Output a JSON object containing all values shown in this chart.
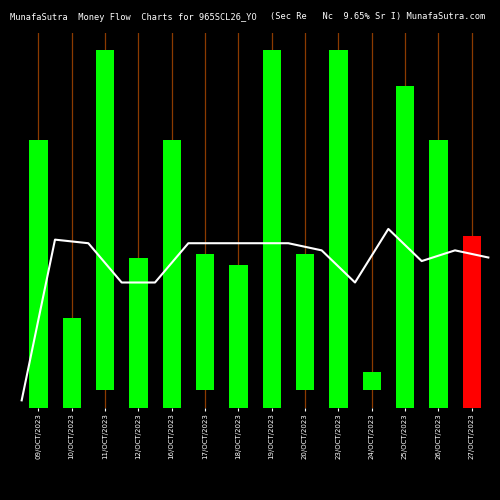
{
  "title_left": "MunafaSutra  Money Flow  Charts for 965SCL26_YO",
  "title_right": "(Sec Re   Nc  9.65% Sr I) MunafaSutra.com",
  "background_color": "#000000",
  "bar_colors": [
    "#00ff00",
    "#00ff00",
    "#00ff00",
    "#00ff00",
    "#00ff00",
    "#00ff00",
    "#00ff00",
    "#00ff00",
    "#00ff00",
    "#00ff00",
    "#00ff00",
    "#00ff00",
    "#00ff00",
    "#ff0000"
  ],
  "bar_tops": [
    0.75,
    0.25,
    1.0,
    0.42,
    0.75,
    0.43,
    0.4,
    1.0,
    0.43,
    1.0,
    0.1,
    0.9,
    0.75,
    0.48
  ],
  "bar_bottoms": [
    0.0,
    0.0,
    0.05,
    0.0,
    0.0,
    0.05,
    0.0,
    0.0,
    0.05,
    0.0,
    0.05,
    0.0,
    0.0,
    0.0
  ],
  "line_y": [
    0.02,
    0.47,
    0.46,
    0.35,
    0.35,
    0.46,
    0.46,
    0.46,
    0.46,
    0.44,
    0.35,
    0.5,
    0.41,
    0.44,
    0.42
  ],
  "spine_color": "#8B3A00",
  "labels": [
    "09/OCT/2023",
    "10/OCT/2023",
    "11/OCT/2023",
    "12/OCT/2023",
    "16/OCT/2023",
    "17/OCT/2023",
    "18/OCT/2023",
    "19/OCT/2023",
    "20/OCT/2023",
    "23/OCT/2023",
    "24/OCT/2023",
    "25/OCT/2023",
    "26/OCT/2023",
    "27/OCT/2023"
  ],
  "n_bars": 14,
  "bar_width": 0.55,
  "ylim": [
    0.0,
    1.05
  ],
  "title_fontsize": 6.2,
  "label_fontsize": 5.0,
  "line_color": "#ffffff",
  "line_width": 1.5
}
